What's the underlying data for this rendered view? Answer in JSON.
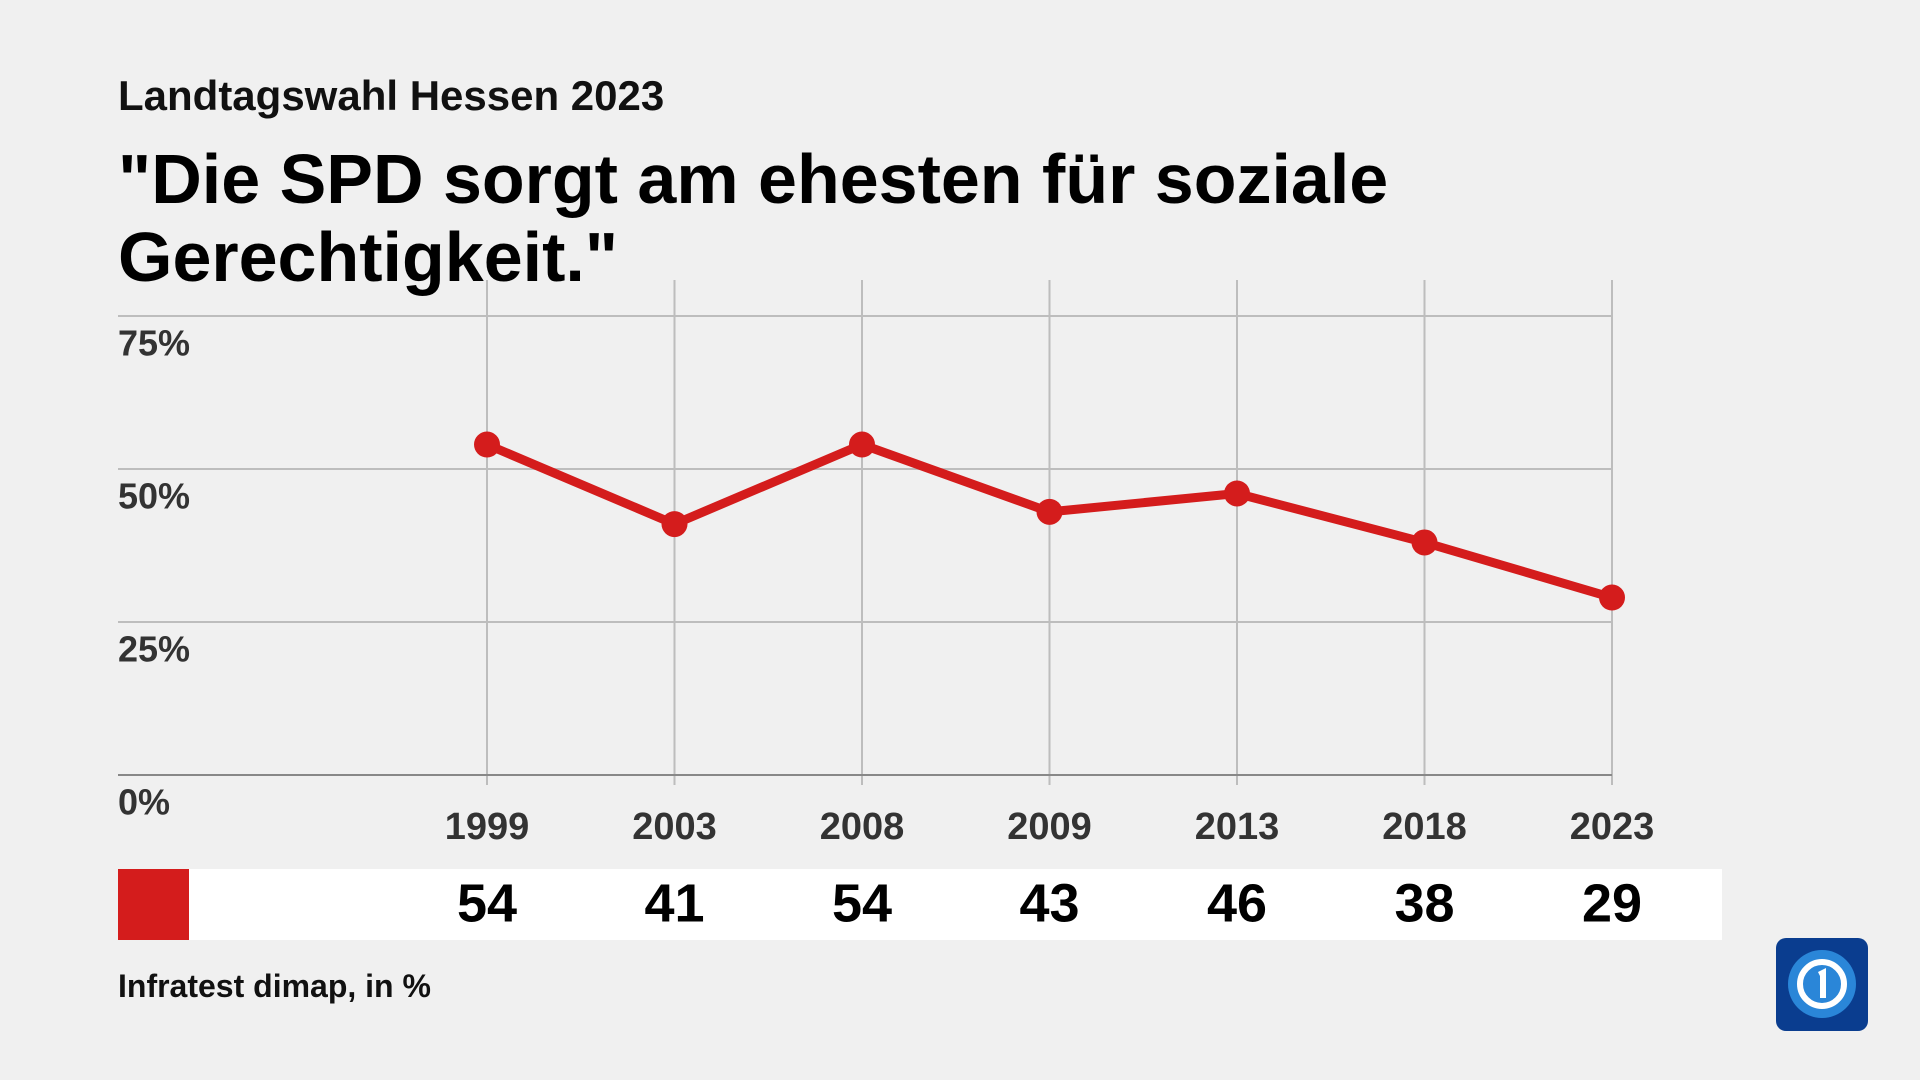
{
  "chart_data": {
    "type": "line",
    "subtitle": "Landtagswahl Hessen 2023",
    "title": "\"Die SPD sorgt am ehesten für soziale Gerechtigkeit.\"",
    "categories": [
      "1999",
      "2003",
      "2008",
      "2009",
      "2013",
      "2018",
      "2023"
    ],
    "values": [
      54,
      41,
      54,
      43,
      46,
      38,
      29
    ],
    "color": "#d41c1c",
    "ylim": [
      0,
      75
    ],
    "yticks": [
      {
        "value": 0,
        "label": "0%"
      },
      {
        "value": 25,
        "label": "25%"
      },
      {
        "value": 50,
        "label": "50%"
      },
      {
        "value": 75,
        "label": "75%"
      }
    ],
    "grid": true,
    "source": "Infratest dimap, in %"
  }
}
